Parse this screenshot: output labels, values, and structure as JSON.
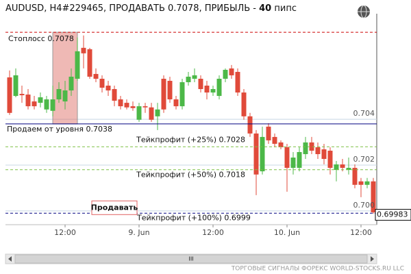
{
  "chart_data": {
    "type": "candlestick",
    "title": "AUDUSD, H4#229465, ПРОДАВАТЬ 0.7078, ПРИБЫЛЬ -",
    "profit_pips": 40,
    "profit_unit": "пипс",
    "up_color": "#4cb848",
    "down_color": "#e04a3a",
    "categories": [
      null,
      null,
      null,
      null,
      null,
      null,
      null,
      null,
      null,
      "12:00",
      null,
      null,
      null,
      null,
      null,
      null,
      null,
      null,
      null,
      null,
      null,
      "9. Jun",
      null,
      null,
      null,
      null,
      null,
      null,
      null,
      null,
      null,
      null,
      null,
      "12:00",
      null,
      null,
      null,
      null,
      null,
      null,
      null,
      null,
      null,
      null,
      null,
      "10. Jun",
      null,
      null,
      null,
      null,
      null,
      null,
      null,
      null,
      null,
      null,
      null,
      "12:00",
      null,
      null
    ],
    "open": [
      0.70583,
      0.70502,
      0.70511,
      0.70508,
      0.70478,
      0.70472,
      0.70443,
      0.70437,
      0.70487,
      0.70478,
      0.70526,
      0.70577,
      0.70712,
      0.70706,
      0.70598,
      0.70577,
      0.70547,
      0.70532,
      0.70487,
      0.70472,
      0.70457,
      0.70398,
      0.70457,
      0.70452,
      0.70413,
      0.70577,
      0.70568,
      0.70487,
      0.70457,
      0.70562,
      0.70577,
      0.70577,
      0.70547,
      0.70517,
      0.70502,
      0.70577,
      0.70622,
      0.70607,
      0.70517,
      0.70413,
      0.70338,
      0.70173,
      0.70368,
      0.70323,
      0.70299,
      0.70278,
      0.70188,
      0.70188,
      0.70248,
      0.70299,
      0.70278,
      0.70269,
      0.70263,
      0.70179,
      0.70203,
      0.70179,
      0.70188,
      0.70129,
      0.70114,
      0.70129
    ],
    "high": [
      0.70613,
      0.70622,
      0.70547,
      0.70532,
      0.70502,
      0.70517,
      0.70502,
      0.70547,
      0.70562,
      0.70568,
      0.70622,
      0.70757,
      0.70766,
      0.70712,
      0.70622,
      0.70592,
      0.70568,
      0.70547,
      0.70502,
      0.70487,
      0.70478,
      0.70472,
      0.70472,
      0.70472,
      0.70472,
      0.70592,
      0.70586,
      0.70502,
      0.70577,
      0.70607,
      0.70622,
      0.70592,
      0.70568,
      0.70547,
      0.70592,
      0.70622,
      0.70637,
      0.70622,
      0.70532,
      0.70428,
      0.70353,
      0.70368,
      0.70383,
      0.70338,
      0.70308,
      0.70293,
      0.70257,
      0.70278,
      0.70323,
      0.70323,
      0.70299,
      0.70293,
      0.70278,
      0.70218,
      0.70227,
      0.70233,
      0.70203,
      0.70144,
      0.70144,
      0.70144
    ],
    "low": [
      0.70419,
      0.70496,
      0.70472,
      0.70443,
      0.70443,
      0.70452,
      0.70428,
      0.70413,
      0.70472,
      0.70443,
      0.70502,
      0.70568,
      0.70622,
      0.70577,
      0.70562,
      0.70517,
      0.70502,
      0.70457,
      0.70443,
      0.70443,
      0.70437,
      0.70389,
      0.70428,
      0.70389,
      0.70353,
      0.70428,
      0.70472,
      0.70443,
      0.70443,
      0.70547,
      0.70562,
      0.70517,
      0.70487,
      0.70502,
      0.70487,
      0.70562,
      0.70577,
      0.70502,
      0.70398,
      0.70323,
      0.70069,
      0.70159,
      0.70293,
      0.70278,
      0.70269,
      0.70084,
      0.70159,
      0.70173,
      0.70227,
      0.70248,
      0.70227,
      0.70203,
      0.70159,
      0.70129,
      0.70173,
      0.70159,
      0.70099,
      0.7006,
      0.70099,
      0.69988
    ],
    "close": [
      0.70428,
      0.70592,
      0.70505,
      0.70457,
      0.70457,
      0.70496,
      0.70487,
      0.70487,
      0.70532,
      0.70526,
      0.70586,
      0.70697,
      0.70688,
      0.70586,
      0.70577,
      0.70538,
      0.70526,
      0.70481,
      0.70457,
      0.70452,
      0.70449,
      0.70457,
      0.70452,
      0.70398,
      0.70443,
      0.70443,
      0.70487,
      0.70457,
      0.70562,
      0.70586,
      0.70592,
      0.70532,
      0.70517,
      0.70532,
      0.70577,
      0.70616,
      0.70592,
      0.70517,
      0.70413,
      0.70338,
      0.70159,
      0.70323,
      0.70308,
      0.70293,
      0.70278,
      0.70188,
      0.70233,
      0.70257,
      0.70299,
      0.70263,
      0.70248,
      0.70227,
      0.70188,
      0.70203,
      0.70188,
      0.70188,
      0.70114,
      0.70114,
      0.70129,
      0.69994
    ],
    "ylim": [
      0.69934,
      0.70861
    ],
    "yticks": [
      {
        "value": 0.7,
        "label": "0.700"
      },
      {
        "value": 0.702,
        "label": "0.702"
      },
      {
        "value": 0.704,
        "label": "0.704"
      }
    ],
    "grid": true,
    "current_price": 0.69983,
    "levels": [
      {
        "label": "Стоплосс 0.7078",
        "value": 0.7078,
        "color": "#cc0000",
        "style": "dashed"
      },
      {
        "label": "Продаем от уровня 0.7038",
        "value": 0.7038,
        "color": "#000080",
        "style": "solid"
      },
      {
        "label": "Тейкпрофит (+25%) 0.7028",
        "value": 0.7028,
        "color": "#7cc043",
        "style": "dashed"
      },
      {
        "label": "Тейкпрофит (+50%) 0.7018",
        "value": 0.7018,
        "color": "#7cc043",
        "style": "dashed"
      },
      {
        "label": "Тейкпрофит (+100%) 0.6999",
        "value": 0.6999,
        "color": "#000080",
        "style": "dashed"
      }
    ],
    "signal_button": "Продавать",
    "scroll_grip": "III",
    "footer": "ТОРГОВЫЕ СИГНАЛЫ ФОРЕКС WORLD-STOCKS.RU LLC"
  }
}
